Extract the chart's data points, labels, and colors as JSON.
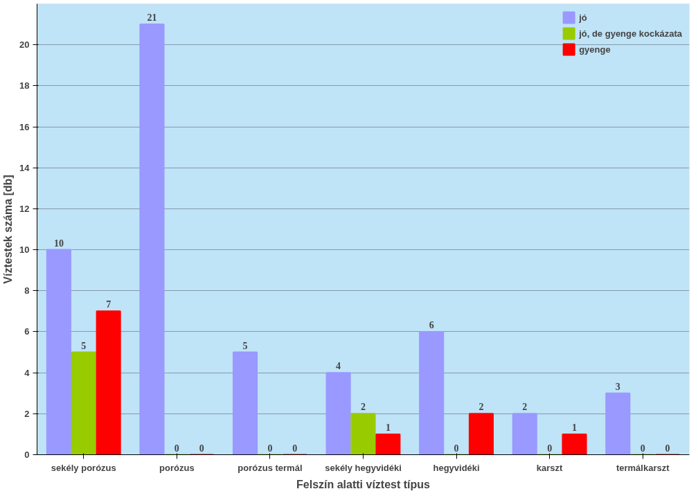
{
  "chart_data": {
    "type": "bar",
    "xlabel": "Felszín alatti víztest típus",
    "ylabel": "Víztestek száma [db]",
    "categories": [
      "sekély porózus",
      "porózus",
      "porózus termál",
      "sekély hegyvidéki",
      "hegyvidéki",
      "karszt",
      "termálkarszt"
    ],
    "series": [
      {
        "name": "jó",
        "color": "#9999ff",
        "values": [
          10,
          21,
          5,
          4,
          6,
          2,
          3
        ]
      },
      {
        "name": "jó, de gyenge kockázata",
        "color": "#99cc00",
        "values": [
          5,
          0,
          0,
          2,
          0,
          0,
          0
        ]
      },
      {
        "name": "gyenge",
        "color": "#ff0000",
        "values": [
          7,
          0,
          0,
          1,
          2,
          1,
          0
        ]
      }
    ],
    "ylim": [
      0,
      22
    ],
    "yticks": [
      0,
      2,
      4,
      6,
      8,
      10,
      12,
      14,
      16,
      18,
      20
    ],
    "data_labels": true,
    "grid": "y",
    "legend": "top right"
  }
}
